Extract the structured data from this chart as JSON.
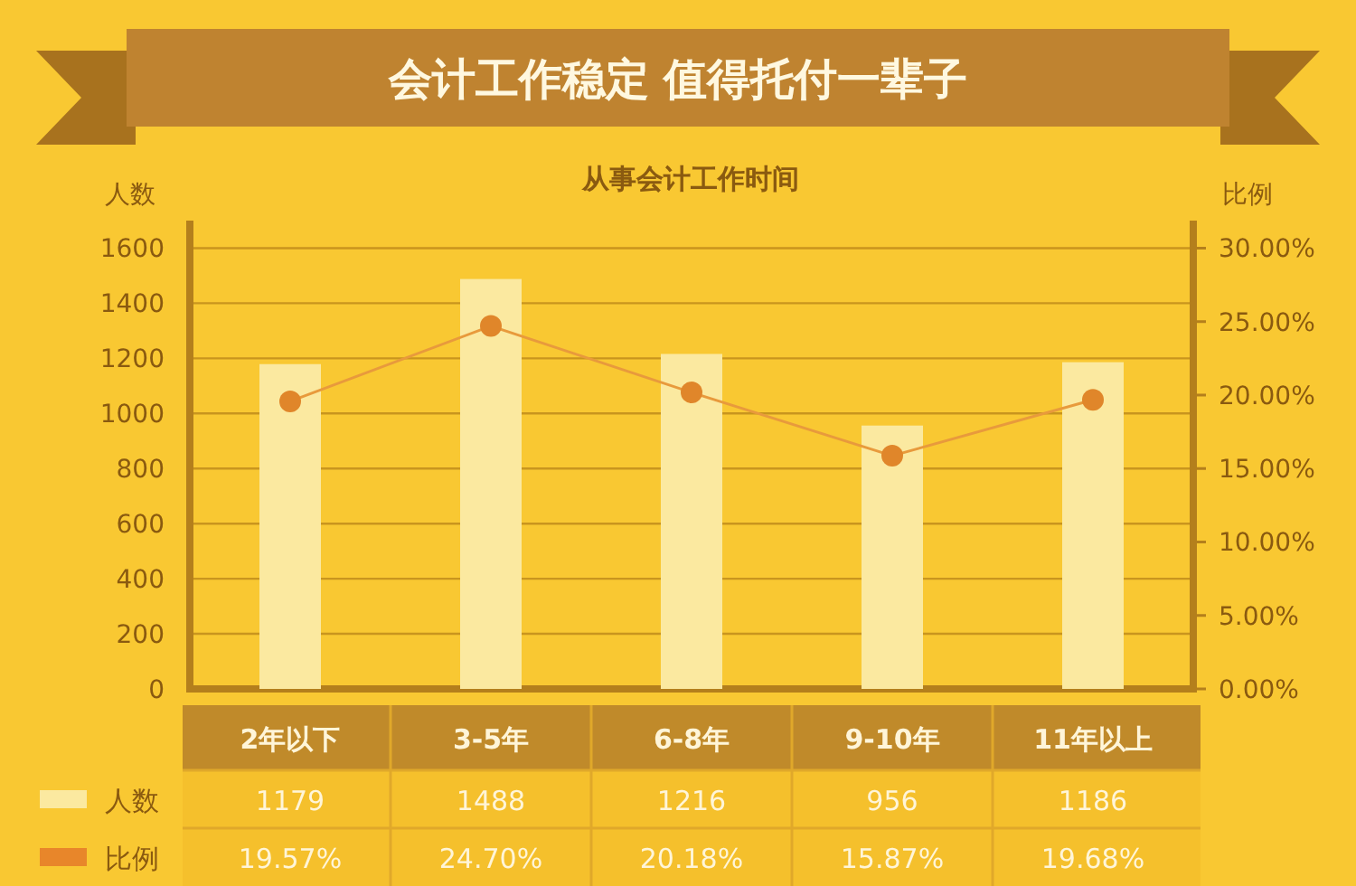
{
  "chart_data": {
    "type": "bar",
    "title": "会计工作稳定 值得托付一辈子",
    "subtitle": "从事会计工作时间",
    "ylabel": "人数",
    "y2label": "比例",
    "categories": [
      "2年以下",
      "3-5年",
      "6-8年",
      "9-10年",
      "11年以上"
    ],
    "series": [
      {
        "name": "人数",
        "color": "#fbe9a0",
        "values": [
          1179,
          1488,
          1216,
          956,
          1186
        ],
        "value_labels": [
          "1179",
          "1488",
          "1216",
          "956",
          "1186"
        ]
      },
      {
        "name": "比例",
        "type": "line",
        "axis": "y2",
        "color": "#e89a3c",
        "marker": "circle",
        "values": [
          19.57,
          24.7,
          20.18,
          15.87,
          19.68
        ],
        "value_labels": [
          "19.57%",
          "24.70%",
          "20.18%",
          "15.87%",
          "19.68%"
        ]
      }
    ],
    "ylim": [
      0,
      1700
    ],
    "yticks": [
      0,
      200,
      400,
      600,
      800,
      1000,
      1200,
      1400,
      1600
    ],
    "y2lim": [
      0,
      31.875
    ],
    "y2ticks": [
      {
        "value": 0,
        "label": "0.00%"
      },
      {
        "value": 5,
        "label": "5.00%"
      },
      {
        "value": 10,
        "label": "10.00%"
      },
      {
        "value": 15,
        "label": "15.00%"
      },
      {
        "value": 20,
        "label": "20.00%"
      },
      {
        "value": 25,
        "label": "25.00%"
      },
      {
        "value": 30,
        "label": "30.00%"
      }
    ],
    "grid": "y",
    "legend": "bottom left"
  }
}
